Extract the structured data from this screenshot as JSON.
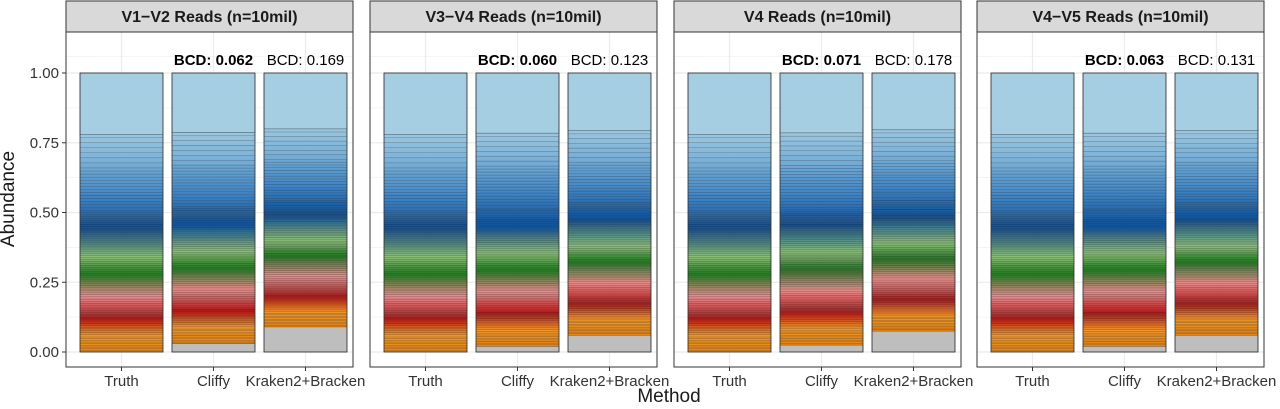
{
  "chart_data": {
    "type": "bar",
    "stacked": true,
    "ylabel": "Abundance",
    "xlabel": "Method",
    "ylim": [
      0,
      1.1
    ],
    "y_ticks": [
      "0.00",
      "0.25",
      "0.50",
      "0.75",
      "1.00"
    ],
    "categories": [
      "Truth",
      "Cliffy",
      "Kraken2+Bracken"
    ],
    "facets": [
      {
        "title": "V1−V2 Reads (n=10mil)",
        "bcd": [
          {
            "label": "BCD:",
            "value": "0.062",
            "bold": true
          },
          {
            "label": "BCD:",
            "value": "0.169",
            "bold": false
          }
        ],
        "unclassified": [
          0,
          0.03,
          0.09
        ]
      },
      {
        "title": "V3−V4 Reads (n=10mil)",
        "bcd": [
          {
            "label": "BCD:",
            "value": "0.060",
            "bold": true
          },
          {
            "label": "BCD:",
            "value": "0.123",
            "bold": false
          }
        ],
        "unclassified": [
          0,
          0.02,
          0.06
        ]
      },
      {
        "title": "V4 Reads (n=10mil)",
        "bcd": [
          {
            "label": "BCD:",
            "value": "0.071",
            "bold": true
          },
          {
            "label": "BCD:",
            "value": "0.178",
            "bold": false
          }
        ],
        "unclassified": [
          0,
          0.025,
          0.075
        ]
      },
      {
        "title": "V4−V5 Reads (n=10mil)",
        "bcd": [
          {
            "label": "BCD:",
            "value": "0.063",
            "bold": true
          },
          {
            "label": "BCD:",
            "value": "0.131",
            "bold": false
          }
        ],
        "unclassified": [
          0,
          0.02,
          0.06
        ]
      }
    ],
    "colors": {
      "unclassified": "#bebebe",
      "top_taxon": "#a6cee3",
      "panel_border": "#333333",
      "strip_fill": "#d9d9d9",
      "grid": "#ebebeb"
    }
  }
}
